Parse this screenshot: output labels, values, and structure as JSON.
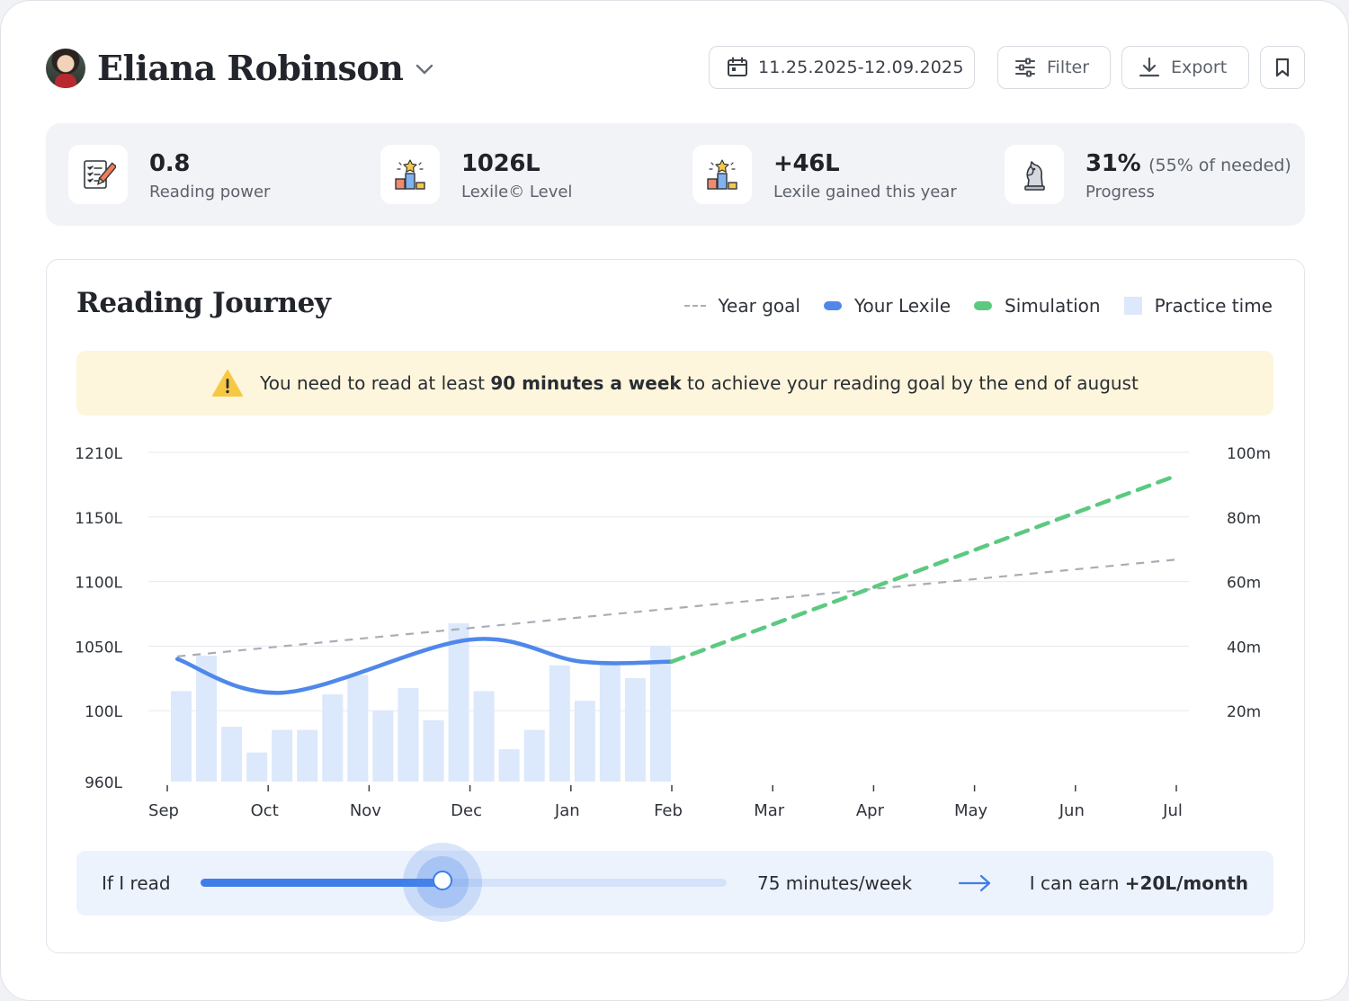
{
  "header": {
    "student_name": "Eliana Robinson",
    "date_range": "11.25.2025-12.09.2025",
    "filter_label": "Filter",
    "export_label": "Export"
  },
  "stats": [
    {
      "value": "0.8",
      "sub": "",
      "label": "Reading power",
      "icon": "checklist-pencil-icon"
    },
    {
      "value": "1026L",
      "sub": "",
      "label": "Lexile© Level",
      "icon": "podium-star-icon"
    },
    {
      "value": "+46L",
      "sub": "",
      "label": "Lexile gained this year",
      "icon": "podium-star-icon"
    },
    {
      "value": "31%",
      "sub": "(55% of needed)",
      "label": "Progress",
      "icon": "chess-knight-icon"
    }
  ],
  "journey": {
    "title": "Reading Journey",
    "legend": {
      "year_goal": "Year goal",
      "your_lexile": "Your Lexile",
      "simulation": "Simulation",
      "practice_time": "Practice time"
    },
    "alert": {
      "before": "You need to read at least ",
      "bold": "90 minutes a week",
      "after": " to achieve your reading goal by the end of august"
    }
  },
  "simulator": {
    "lead": "If I read",
    "value": "75 minutes/week",
    "result_before": "I can earn ",
    "result_bold": "+20L/month",
    "slider_fraction": 0.46
  },
  "colors": {
    "lexile": "#4f88ea",
    "simulation": "#5cc981",
    "goal": "#a9adb6",
    "practice": "#dce8fb",
    "alert_bg": "#fdf6dc"
  },
  "chart_data": {
    "type": "line",
    "x": [
      "Sep",
      "Oct",
      "Nov",
      "Dec",
      "Jan",
      "Feb",
      "Mar",
      "Apr",
      "May",
      "Jun",
      "Jul"
    ],
    "y_left_ticks": [
      "1210L",
      "1150L",
      "1100L",
      "1050L",
      "100L",
      "960L"
    ],
    "y_right_ticks": [
      "100m",
      "80m",
      "60m",
      "40m",
      "20m"
    ],
    "grid": "horizontal",
    "legend_position": "top-right",
    "practice_time_minutes": [
      28,
      39,
      17,
      9,
      16,
      16,
      27,
      33,
      22,
      29,
      19,
      49,
      28,
      10,
      16,
      36,
      25,
      37,
      32,
      42
    ],
    "your_lexile": [
      {
        "x": 0.1,
        "y": 1040
      },
      {
        "x": 1.15,
        "y": 1014
      },
      {
        "x": 3.0,
        "y": 1055
      },
      {
        "x": 4.1,
        "y": 1038
      },
      {
        "x": 5.0,
        "y": 1038
      }
    ],
    "simulation": [
      {
        "x": 5.0,
        "y": 1038
      },
      {
        "x": 10.0,
        "y": 1182
      }
    ],
    "year_goal": [
      {
        "x": 0.1,
        "y": 1042
      },
      {
        "x": 10.0,
        "y": 1117
      }
    ]
  }
}
